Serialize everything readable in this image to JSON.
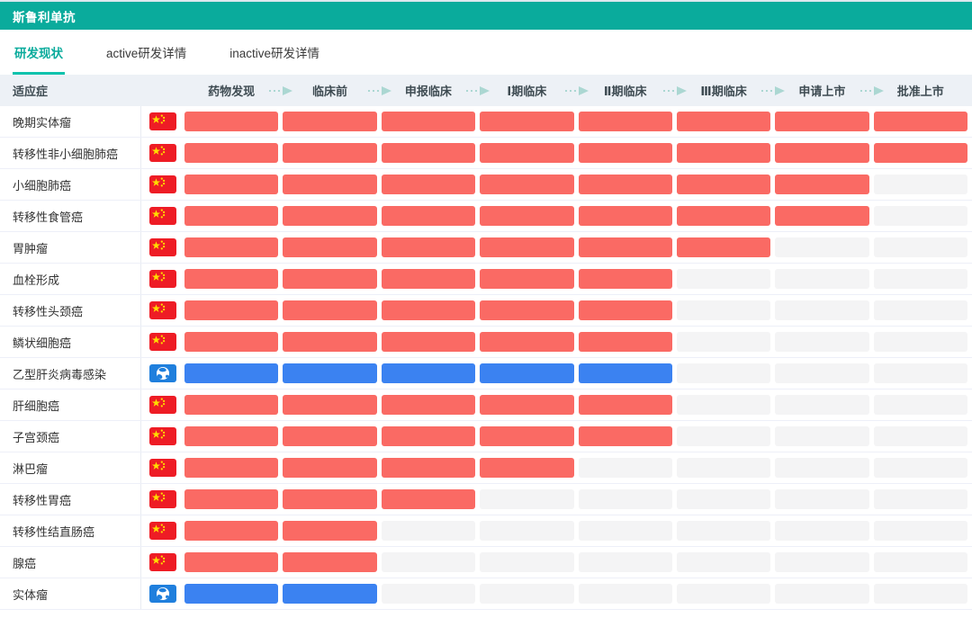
{
  "page": {
    "title": "斯鲁利单抗",
    "tabs": [
      {
        "name": "research-status",
        "label": "研发现状",
        "active": true
      },
      {
        "name": "active-detail",
        "label": "active研发详情",
        "active": false
      },
      {
        "name": "inactive-detail",
        "label": "inactive研发详情",
        "active": false
      }
    ],
    "table": {
      "indication_header": "适应症",
      "stages": [
        "药物发现",
        "临床前",
        "申报临床",
        "Ⅰ期临床",
        "Ⅱ期临床",
        "Ⅲ期临床",
        "申请上市",
        "批准上市"
      ],
      "rows": [
        {
          "indication": "晚期实体瘤",
          "region": "china",
          "region_icon": "china-flag-icon",
          "stages_completed": 8
        },
        {
          "indication": "转移性非小细胞肺癌",
          "region": "china",
          "region_icon": "china-flag-icon",
          "stages_completed": 8
        },
        {
          "indication": "小细胞肺癌",
          "region": "china",
          "region_icon": "china-flag-icon",
          "stages_completed": 7
        },
        {
          "indication": "转移性食管癌",
          "region": "china",
          "region_icon": "china-flag-icon",
          "stages_completed": 7
        },
        {
          "indication": "胃肿瘤",
          "region": "china",
          "region_icon": "china-flag-icon",
          "stages_completed": 6
        },
        {
          "indication": "血栓形成",
          "region": "china",
          "region_icon": "china-flag-icon",
          "stages_completed": 5
        },
        {
          "indication": "转移性头颈癌",
          "region": "china",
          "region_icon": "china-flag-icon",
          "stages_completed": 5
        },
        {
          "indication": "鳞状细胞癌",
          "region": "china",
          "region_icon": "china-flag-icon",
          "stages_completed": 5
        },
        {
          "indication": "乙型肝炎病毒感染",
          "region": "global",
          "region_icon": "globe-icon",
          "stages_completed": 5
        },
        {
          "indication": "肝细胞癌",
          "region": "china",
          "region_icon": "china-flag-icon",
          "stages_completed": 5
        },
        {
          "indication": "子宫颈癌",
          "region": "china",
          "region_icon": "china-flag-icon",
          "stages_completed": 5
        },
        {
          "indication": "淋巴瘤",
          "region": "china",
          "region_icon": "china-flag-icon",
          "stages_completed": 4
        },
        {
          "indication": "转移性胃癌",
          "region": "china",
          "region_icon": "china-flag-icon",
          "stages_completed": 3
        },
        {
          "indication": "转移性结直肠癌",
          "region": "china",
          "region_icon": "china-flag-icon",
          "stages_completed": 2
        },
        {
          "indication": "腺癌",
          "region": "china",
          "region_icon": "china-flag-icon",
          "stages_completed": 2
        },
        {
          "indication": "实体瘤",
          "region": "global",
          "region_icon": "globe-icon",
          "stages_completed": 2
        }
      ]
    },
    "colors": {
      "accent_teal": "#0aab9c",
      "tab_underline": "#0fc3ad",
      "bar_china": "#fa6a64",
      "bar_global": "#3b82f1",
      "bar_empty": "#f4f4f5",
      "arrow": "#abd7d2",
      "flag_red": "#ee1c25",
      "flag_yellow": "#ffde00",
      "globe_badge_blue": "#1f7fdd"
    }
  }
}
